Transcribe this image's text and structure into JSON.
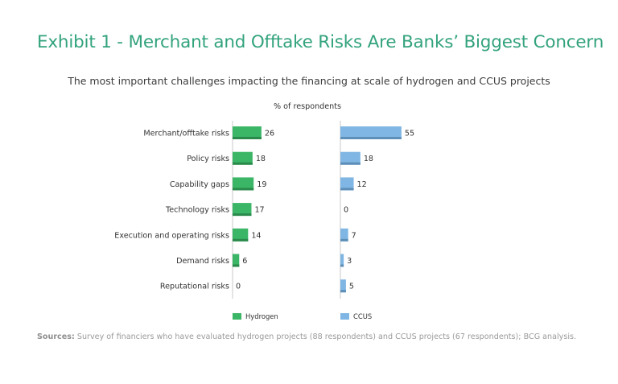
{
  "title": "Exhibit 1 - Merchant and Offtake Risks Are Banks’ Biggest Concern",
  "chart_data": {
    "type": "bar",
    "orientation": "horizontal",
    "title": "The most important challenges impacting the financing at scale of hydrogen and CCUS projects",
    "unit_label": "% of respondents",
    "categories": [
      "Merchant/offtake risks",
      "Policy risks",
      "Capability gaps",
      "Technology risks",
      "Execution and operating risks",
      "Demand risks",
      "Reputational risks"
    ],
    "series": [
      {
        "name": "Hydrogen",
        "values": [
          26,
          18,
          19,
          17,
          14,
          6,
          0
        ],
        "color": "#3bb566",
        "shadow": "#2a8a4b"
      },
      {
        "name": "CCUS",
        "values": [
          55,
          18,
          12,
          0,
          7,
          3,
          5
        ],
        "color": "#7fb6e3",
        "shadow": "#5d8fb8"
      }
    ],
    "legend_position": "bottom",
    "grid": false
  },
  "source": {
    "label": "Sources:",
    "text": "Survey of financiers who have evaluated hydrogen projects (88 respondents) and CCUS projects (67 respondents); BCG analysis."
  }
}
